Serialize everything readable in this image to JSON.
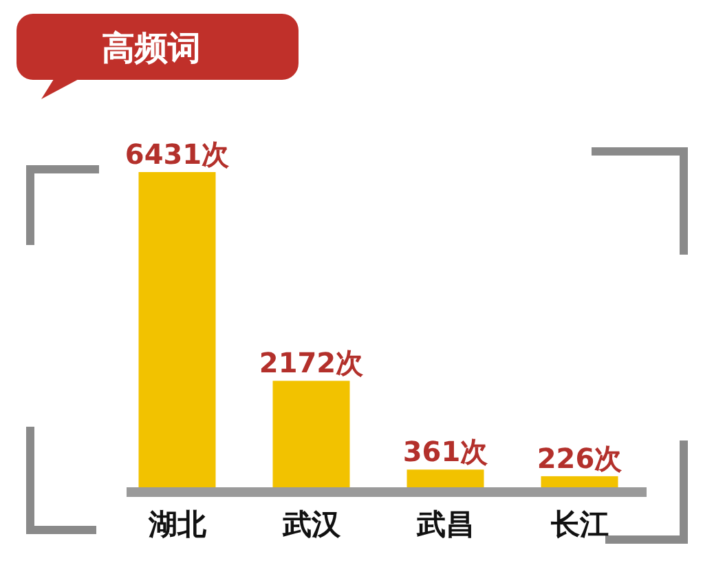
{
  "chart_data": {
    "type": "bar",
    "title": "高频词",
    "categories": [
      "湖北",
      "武汉",
      "武昌",
      "长江"
    ],
    "values": [
      6431,
      2172,
      361,
      226
    ],
    "value_labels": [
      "6431次",
      "2172次",
      "361次",
      "226次"
    ],
    "color": "#f2c200"
  }
}
